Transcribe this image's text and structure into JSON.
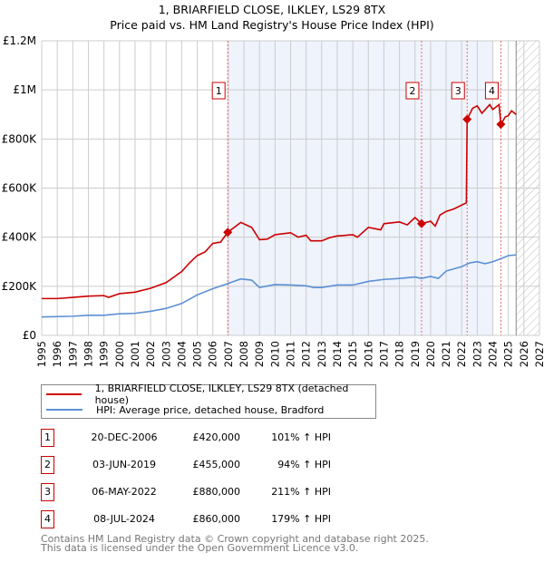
{
  "title": [
    "1, BRIARFIELD CLOSE, ILKLEY, LS29 8TX",
    "Price paid vs. HM Land Registry's House Price Index (HPI)"
  ],
  "chart_data": {
    "type": "line",
    "title": "1, BRIARFIELD CLOSE, ILKLEY, LS29 8TX — Price paid vs. HM Land Registry's House Price Index (HPI)",
    "xlim": [
      1995,
      2027
    ],
    "ylim": [
      0,
      1200000
    ],
    "x_ticks": [
      "1995",
      "1996",
      "1997",
      "1998",
      "1999",
      "2000",
      "2001",
      "2002",
      "2003",
      "2004",
      "2005",
      "2006",
      "2007",
      "2008",
      "2009",
      "2010",
      "2011",
      "2012",
      "2013",
      "2014",
      "2015",
      "2016",
      "2017",
      "2018",
      "2019",
      "2020",
      "2021",
      "2022",
      "2023",
      "2024",
      "2025",
      "2026",
      "2027"
    ],
    "y_ticks": [
      {
        "v": 0,
        "label": "£0"
      },
      {
        "v": 200000,
        "label": "£200K"
      },
      {
        "v": 400000,
        "label": "£400K"
      },
      {
        "v": 600000,
        "label": "£600K"
      },
      {
        "v": 800000,
        "label": "£800K"
      },
      {
        "v": 1000000,
        "label": "£1M"
      },
      {
        "v": 1200000,
        "label": "£1.2M"
      }
    ],
    "grid": true,
    "shaded_range": [
      2006.96,
      2024.0
    ],
    "hatched_from": 2025.5,
    "series": [
      {
        "name": "1, BRIARFIELD CLOSE, ILKLEY, LS29 8TX (detached house)",
        "color": "#cc0000",
        "points": [
          [
            1995,
            150000
          ],
          [
            1996,
            150000
          ],
          [
            1997,
            155000
          ],
          [
            1998,
            160000
          ],
          [
            1999,
            162000
          ],
          [
            1999.3,
            155000
          ],
          [
            2000,
            170000
          ],
          [
            2001,
            176000
          ],
          [
            2002,
            192000
          ],
          [
            2003,
            215000
          ],
          [
            2004,
            260000
          ],
          [
            2004.5,
            295000
          ],
          [
            2005,
            325000
          ],
          [
            2005.5,
            340000
          ],
          [
            2006,
            375000
          ],
          [
            2006.5,
            380000
          ],
          [
            2006.96,
            420000
          ],
          [
            2007.8,
            460000
          ],
          [
            2008.5,
            440000
          ],
          [
            2009,
            390000
          ],
          [
            2009.5,
            392000
          ],
          [
            2010,
            410000
          ],
          [
            2011,
            418000
          ],
          [
            2011.5,
            400000
          ],
          [
            2012,
            408000
          ],
          [
            2012.3,
            385000
          ],
          [
            2013,
            385000
          ],
          [
            2013.5,
            398000
          ],
          [
            2014,
            405000
          ],
          [
            2015,
            410000
          ],
          [
            2015.3,
            400000
          ],
          [
            2016,
            440000
          ],
          [
            2016.8,
            430000
          ],
          [
            2017,
            455000
          ],
          [
            2018,
            462000
          ],
          [
            2018.5,
            450000
          ],
          [
            2019,
            480000
          ],
          [
            2019.42,
            455000
          ],
          [
            2020,
            465000
          ],
          [
            2020.3,
            445000
          ],
          [
            2020.6,
            490000
          ],
          [
            2021,
            505000
          ],
          [
            2021.5,
            515000
          ],
          [
            2022.3,
            540000
          ],
          [
            2022.35,
            880000
          ],
          [
            2022.7,
            925000
          ],
          [
            2023,
            935000
          ],
          [
            2023.3,
            905000
          ],
          [
            2023.8,
            940000
          ],
          [
            2024,
            920000
          ],
          [
            2024.4,
            940000
          ],
          [
            2024.52,
            860000
          ],
          [
            2024.8,
            890000
          ],
          [
            2025,
            895000
          ],
          [
            2025.2,
            915000
          ],
          [
            2025.5,
            900000
          ]
        ]
      },
      {
        "name": "HPI: Average price, detached house, Bradford",
        "color": "#5b8fd4",
        "points": [
          [
            1995,
            75000
          ],
          [
            1997,
            78000
          ],
          [
            1998,
            82000
          ],
          [
            1999,
            82000
          ],
          [
            2000,
            88000
          ],
          [
            2001,
            90000
          ],
          [
            2002,
            98000
          ],
          [
            2003,
            110000
          ],
          [
            2004,
            130000
          ],
          [
            2005,
            165000
          ],
          [
            2006,
            190000
          ],
          [
            2007,
            212000
          ],
          [
            2007.8,
            230000
          ],
          [
            2008.5,
            225000
          ],
          [
            2009,
            195000
          ],
          [
            2010,
            207000
          ],
          [
            2011,
            205000
          ],
          [
            2012,
            202000
          ],
          [
            2012.5,
            195000
          ],
          [
            2013,
            195000
          ],
          [
            2014,
            205000
          ],
          [
            2015,
            205000
          ],
          [
            2016,
            220000
          ],
          [
            2017,
            228000
          ],
          [
            2018,
            232000
          ],
          [
            2019,
            238000
          ],
          [
            2019.4,
            232000
          ],
          [
            2020,
            240000
          ],
          [
            2020.5,
            232000
          ],
          [
            2021,
            262000
          ],
          [
            2022,
            280000
          ],
          [
            2022.5,
            295000
          ],
          [
            2023,
            300000
          ],
          [
            2023.5,
            292000
          ],
          [
            2024,
            300000
          ],
          [
            2024.5,
            312000
          ],
          [
            2025,
            325000
          ],
          [
            2025.5,
            328000
          ]
        ]
      }
    ],
    "sales": [
      {
        "n": "1",
        "x": 2006.96,
        "y": 420000
      },
      {
        "n": "2",
        "x": 2019.42,
        "y": 455000
      },
      {
        "n": "3",
        "x": 2022.35,
        "y": 880000
      },
      {
        "n": "4",
        "x": 2024.52,
        "y": 860000
      }
    ]
  },
  "legend": [
    "1, BRIARFIELD CLOSE, ILKLEY, LS29 8TX (detached house)",
    "HPI: Average price, detached house, Bradford"
  ],
  "transactions": [
    {
      "n": "1",
      "date": "20-DEC-2006",
      "price": "£420,000",
      "hpi": "101% ↑ HPI"
    },
    {
      "n": "2",
      "date": "03-JUN-2019",
      "price": "£455,000",
      "hpi": "94% ↑ HPI"
    },
    {
      "n": "3",
      "date": "06-MAY-2022",
      "price": "£880,000",
      "hpi": "211% ↑ HPI"
    },
    {
      "n": "4",
      "date": "08-JUL-2024",
      "price": "£860,000",
      "hpi": "179% ↑ HPI"
    }
  ],
  "footer": [
    "Contains HM Land Registry data © Crown copyright and database right 2025.",
    "This data is licensed under the Open Government Licence v3.0."
  ]
}
